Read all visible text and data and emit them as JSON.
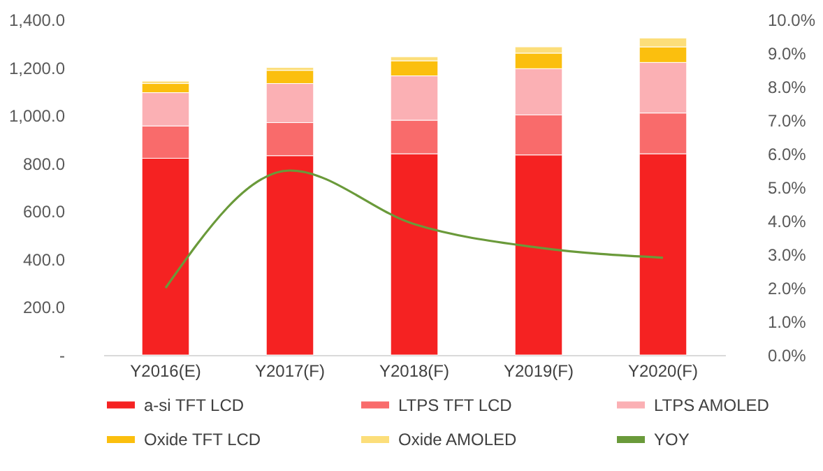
{
  "chart_data": {
    "type": "bar",
    "stacked": true,
    "categories": [
      "Y2016(E)",
      "Y2017(F)",
      "Y2018(F)",
      "Y2019(F)",
      "Y2020(F)"
    ],
    "series": [
      {
        "name": "a-si TFT LCD",
        "color": "#f52222",
        "values": [
          821,
          832,
          840,
          835,
          840
        ]
      },
      {
        "name": "LTPS TFT LCD",
        "color": "#f96b6b",
        "values": [
          135,
          138,
          140,
          167,
          170
        ]
      },
      {
        "name": "LTPS AMOLED",
        "color": "#fbb0b4",
        "values": [
          139,
          163,
          185,
          193,
          211
        ]
      },
      {
        "name": "Oxide TFT LCD",
        "color": "#fbbf0e",
        "values": [
          38,
          55,
          63,
          65,
          65
        ]
      },
      {
        "name": "Oxide AMOLED",
        "color": "#fcde7a",
        "values": [
          10,
          12,
          17,
          26,
          37
        ]
      },
      {
        "name": "YOY",
        "type": "line",
        "axis": "y2",
        "color": "#6a9a3a",
        "values": [
          2.0,
          5.5,
          3.9,
          3.2,
          2.9
        ]
      }
    ],
    "ylim": [
      0,
      1400
    ],
    "yticks": [
      {
        "value": 0,
        "label": "-"
      },
      {
        "value": 200,
        "label": "200.0"
      },
      {
        "value": 400,
        "label": "400.0"
      },
      {
        "value": 600,
        "label": "600.0"
      },
      {
        "value": 800,
        "label": "800.0"
      },
      {
        "value": 1000,
        "label": "1,000.0"
      },
      {
        "value": 1200,
        "label": "1,200.0"
      },
      {
        "value": 1400,
        "label": "1,400.0"
      }
    ],
    "y2lim": [
      0,
      10
    ],
    "y2ticks": [
      {
        "value": 0,
        "label": "0.0%"
      },
      {
        "value": 1,
        "label": "1.0%"
      },
      {
        "value": 2,
        "label": "2.0%"
      },
      {
        "value": 3,
        "label": "3.0%"
      },
      {
        "value": 4,
        "label": "4.0%"
      },
      {
        "value": 5,
        "label": "5.0%"
      },
      {
        "value": 6,
        "label": "6.0%"
      },
      {
        "value": 7,
        "label": "7.0%"
      },
      {
        "value": 8,
        "label": "8.0%"
      },
      {
        "value": 9,
        "label": "9.0%"
      },
      {
        "value": 10,
        "label": "10.0%"
      }
    ],
    "legend": "bottom",
    "grid": false
  }
}
